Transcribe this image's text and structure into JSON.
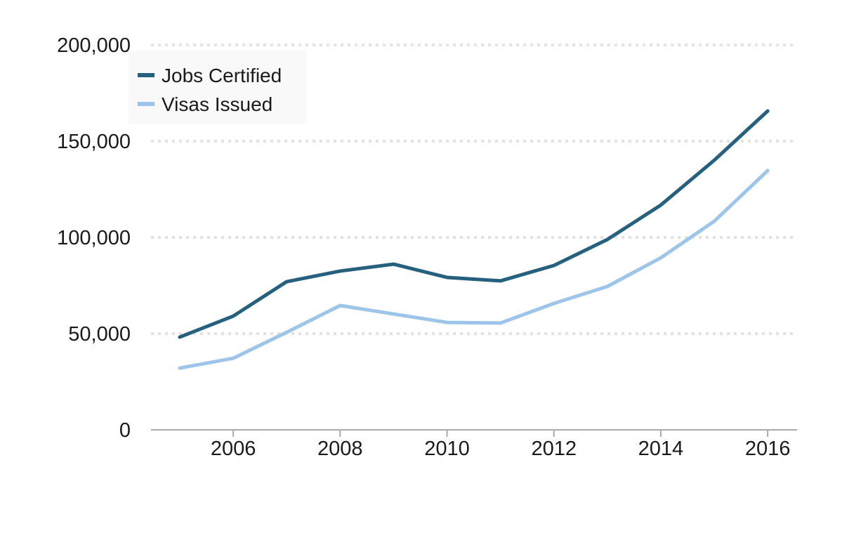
{
  "chart_data": {
    "type": "line",
    "title": "",
    "xlabel": "",
    "ylabel": "",
    "x": [
      2005,
      2006,
      2007,
      2008,
      2009,
      2010,
      2011,
      2012,
      2013,
      2014,
      2015,
      2016
    ],
    "xlim": [
      2004.5,
      2016.55
    ],
    "ylim": [
      0,
      200000
    ],
    "x_ticks": [
      2006,
      2008,
      2010,
      2012,
      2014,
      2016
    ],
    "x_tick_labels": [
      "2006",
      "2008",
      "2010",
      "2012",
      "2014",
      "2016"
    ],
    "y_ticks": [
      0,
      50000,
      100000,
      150000,
      200000
    ],
    "y_tick_labels": [
      "0",
      "50,000",
      "100,000",
      "150,000",
      "200,000"
    ],
    "grid": "horizontal dotted",
    "legend_position": "top-left",
    "series": [
      {
        "name": "Jobs Certified",
        "color": "#25607f",
        "values": [
          48200,
          59100,
          77000,
          82500,
          86100,
          79200,
          77400,
          85400,
          98900,
          116800,
          140100,
          165700
        ]
      },
      {
        "name": "Visas Issued",
        "color": "#9dc5e9",
        "values": [
          32100,
          37200,
          50700,
          64600,
          60200,
          55800,
          55500,
          65700,
          74500,
          89400,
          108400,
          134700
        ]
      }
    ]
  }
}
